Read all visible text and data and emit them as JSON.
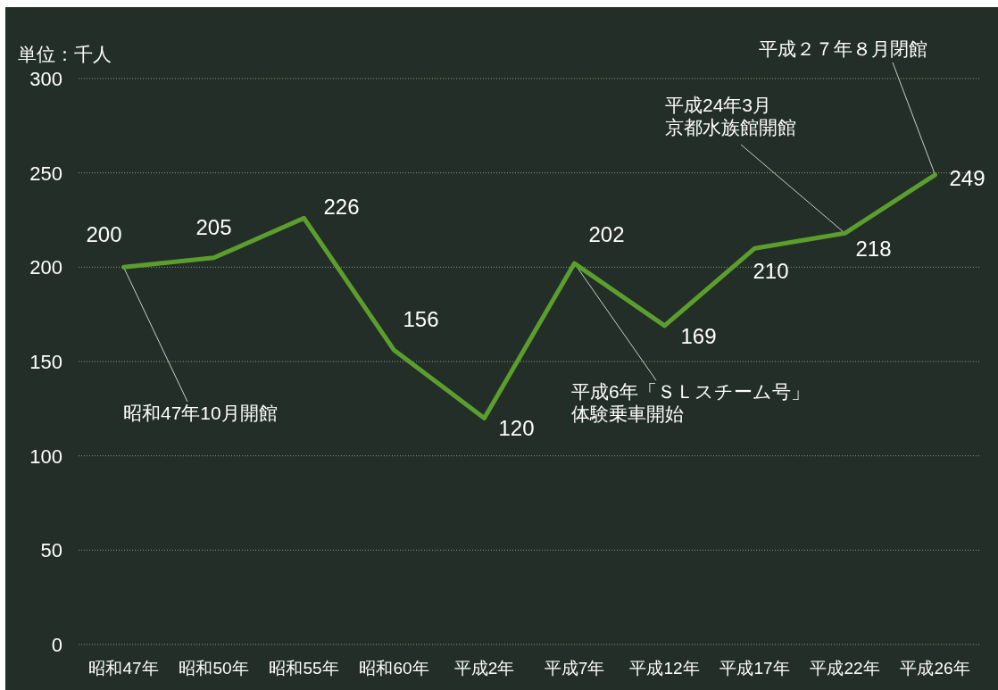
{
  "chart_data": {
    "type": "line",
    "ylabel": "単位：千人",
    "categories": [
      "昭和47年",
      "昭和50年",
      "昭和55年",
      "昭和60年",
      "平成2年",
      "平成7年",
      "平成12年",
      "平成17年",
      "平成22年",
      "平成26年"
    ],
    "series": [
      {
        "color": "#5c9e2e",
        "values": [
          200,
          205,
          226,
          156,
          120,
          202,
          169,
          210,
          218,
          249
        ]
      }
    ],
    "ylim": [
      0,
      300
    ],
    "yticks": [
      0,
      50,
      100,
      150,
      200,
      250,
      300
    ],
    "grid": "y",
    "data_labels": true,
    "marker": "none",
    "line_style": "solid",
    "annotations": [
      {
        "text": "昭和47年10月開館",
        "x": "昭和47年",
        "y": 200
      },
      {
        "text": "平成6年「ＳＬスチーム号」体験乗車開始",
        "x": "平成7年",
        "y": 202
      },
      {
        "text": "平成24年3月京都水族館開館",
        "x": "平成22年",
        "y": 218
      },
      {
        "text": "平成２７年８月閉館",
        "x": "平成26年",
        "y": 249
      }
    ]
  }
}
